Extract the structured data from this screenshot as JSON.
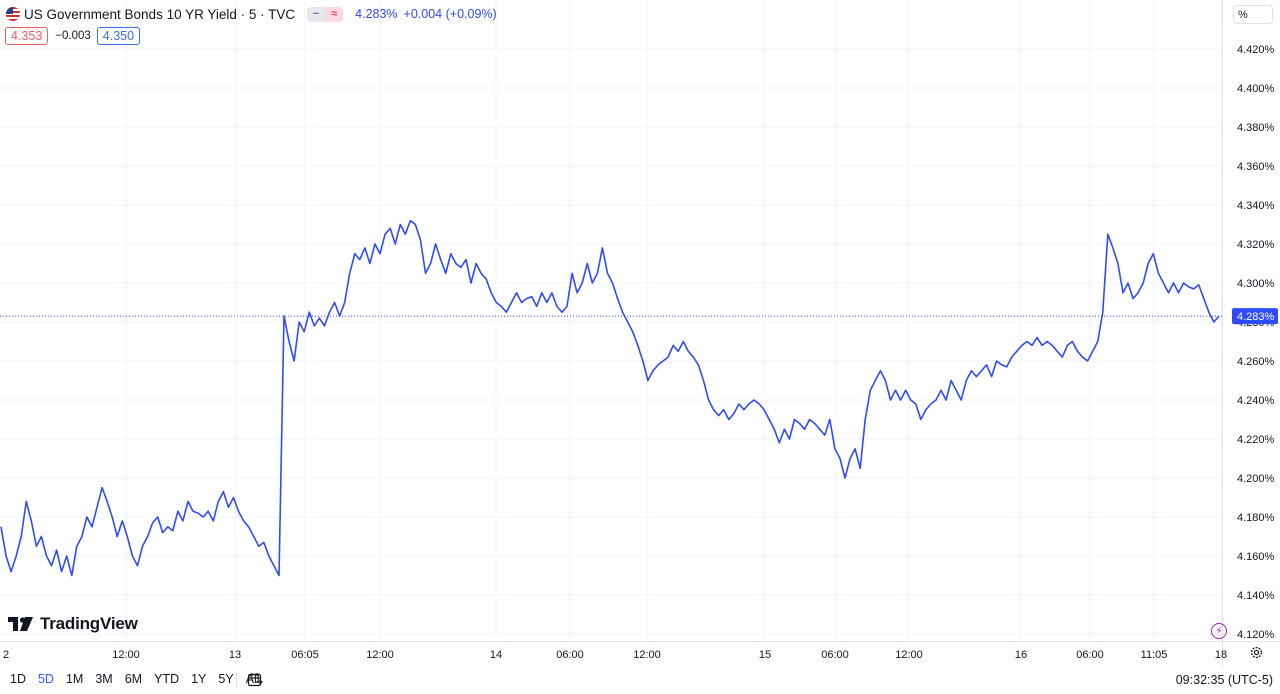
{
  "header": {
    "symbol": "US Government Bonds 10 YR Yield · 5 · TVC",
    "last": "4.283%",
    "change": "+0.004 (+0.09%)",
    "bid": "4.353",
    "spread": "−0.003",
    "ask": "4.350",
    "unit": "%",
    "flag_icon": "us-flag-icon",
    "mode_icons": [
      "minus-icon",
      "approx-icon"
    ]
  },
  "toolbar": {
    "ranges": [
      "1D",
      "5D",
      "1M",
      "3M",
      "6M",
      "YTD",
      "1Y",
      "5Y",
      "All"
    ],
    "active_range": "5D",
    "clock": "09:32:35 (UTC-5)"
  },
  "logo": "TradingView",
  "colors": {
    "line": "#2f4bff",
    "accent": "#2962ff",
    "grid": "#f0f3fa",
    "bid": "#f05c62"
  },
  "chart_data": {
    "type": "line",
    "title": "",
    "xlabel": "",
    "ylabel": "",
    "ylim": [
      4.115,
      4.435
    ],
    "y_ticks": [
      "4.420%",
      "4.400%",
      "4.380%",
      "4.360%",
      "4.340%",
      "4.320%",
      "4.300%",
      "4.280%",
      "4.260%",
      "4.240%",
      "4.220%",
      "4.200%",
      "4.180%",
      "4.160%",
      "4.140%",
      "4.120%"
    ],
    "x_ticks": [
      "2",
      "12:00",
      "13",
      "06:05",
      "12:00",
      "14",
      "06:00",
      "12:00",
      "15",
      "06:00",
      "12:00",
      "16",
      "06:00",
      "11:05",
      "18"
    ],
    "last_value_label": "4.283%",
    "grid": true,
    "series": [
      {
        "values": [
          4.175,
          4.16,
          4.152,
          4.16,
          4.17,
          4.188,
          4.178,
          4.165,
          4.17,
          4.16,
          4.155,
          4.163,
          4.152,
          4.16,
          4.15,
          4.165,
          4.17,
          4.18,
          4.175,
          4.185,
          4.195,
          4.188,
          4.18,
          4.17,
          4.178,
          4.17,
          4.16,
          4.155,
          4.165,
          4.17,
          4.177,
          4.18,
          4.172,
          4.175,
          4.173,
          4.183,
          4.178,
          4.188,
          4.183,
          4.182,
          4.18,
          4.183,
          4.178,
          4.188,
          4.193,
          4.185,
          4.19,
          4.183,
          4.178,
          4.175,
          4.17,
          4.165,
          4.167,
          4.16,
          4.155,
          4.15,
          4.283,
          4.27,
          4.26,
          4.28,
          4.275,
          4.285,
          4.278,
          4.282,
          4.278,
          4.285,
          4.29,
          4.283,
          4.29,
          4.305,
          4.315,
          4.312,
          4.318,
          4.31,
          4.32,
          4.315,
          4.325,
          4.328,
          4.32,
          4.33,
          4.325,
          4.332,
          4.33,
          4.322,
          4.305,
          4.31,
          4.32,
          4.312,
          4.305,
          4.315,
          4.31,
          4.308,
          4.312,
          4.3,
          4.31,
          4.305,
          4.302,
          4.295,
          4.29,
          4.288,
          4.285,
          4.29,
          4.295,
          4.29,
          4.292,
          4.293,
          4.288,
          4.295,
          4.29,
          4.295,
          4.288,
          4.285,
          4.288,
          4.305,
          4.295,
          4.3,
          4.31,
          4.3,
          4.305,
          4.318,
          4.305,
          4.3,
          4.292,
          4.285,
          4.28,
          4.275,
          4.268,
          4.26,
          4.25,
          4.255,
          4.258,
          4.26,
          4.262,
          4.268,
          4.265,
          4.27,
          4.265,
          4.262,
          4.258,
          4.25,
          4.24,
          4.235,
          4.232,
          4.235,
          4.23,
          4.233,
          4.238,
          4.235,
          4.238,
          4.24,
          4.238,
          4.235,
          4.23,
          4.225,
          4.218,
          4.225,
          4.22,
          4.23,
          4.228,
          4.225,
          4.23,
          4.228,
          4.225,
          4.222,
          4.23,
          4.215,
          4.21,
          4.2,
          4.21,
          4.215,
          4.205,
          4.23,
          4.245,
          4.25,
          4.255,
          4.25,
          4.24,
          4.245,
          4.24,
          4.245,
          4.24,
          4.238,
          4.23,
          4.235,
          4.238,
          4.24,
          4.245,
          4.24,
          4.25,
          4.245,
          4.24,
          4.25,
          4.255,
          4.252,
          4.255,
          4.258,
          4.252,
          4.26,
          4.258,
          4.257,
          4.262,
          4.265,
          4.268,
          4.27,
          4.268,
          4.272,
          4.268,
          4.27,
          4.268,
          4.265,
          4.262,
          4.268,
          4.27,
          4.265,
          4.262,
          4.26,
          4.265,
          4.27,
          4.285,
          4.325,
          4.318,
          4.31,
          4.295,
          4.3,
          4.292,
          4.295,
          4.3,
          4.31,
          4.315,
          4.305,
          4.3,
          4.295,
          4.3,
          4.295,
          4.3,
          4.298,
          4.297,
          4.299,
          4.292,
          4.285,
          4.28,
          4.283
        ]
      }
    ]
  }
}
